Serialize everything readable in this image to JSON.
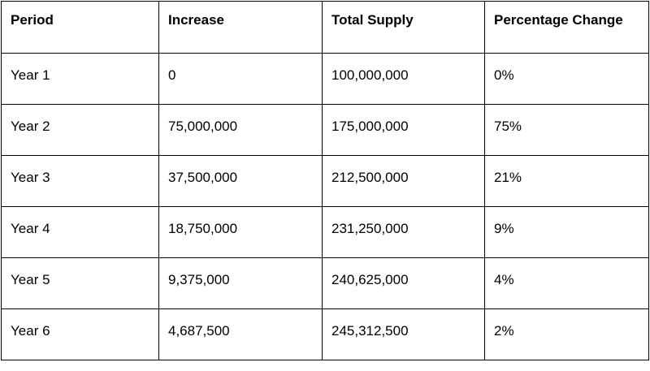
{
  "chart_data": {
    "type": "table",
    "columns": [
      "Period",
      "Increase",
      "Total Supply",
      "Percentage Change"
    ],
    "rows": [
      [
        "Year 1",
        "0",
        "100,000,000",
        "0%"
      ],
      [
        "Year 2",
        "75,000,000",
        "175,000,000",
        "75%"
      ],
      [
        "Year 3",
        "37,500,000",
        "212,500,000",
        "21%"
      ],
      [
        "Year 4",
        "18,750,000",
        "231,250,000",
        "9%"
      ],
      [
        "Year 5",
        "9,375,000",
        "240,625,000",
        "4%"
      ],
      [
        "Year 6",
        "4,687,500",
        "245,312,500",
        "2%"
      ]
    ]
  }
}
